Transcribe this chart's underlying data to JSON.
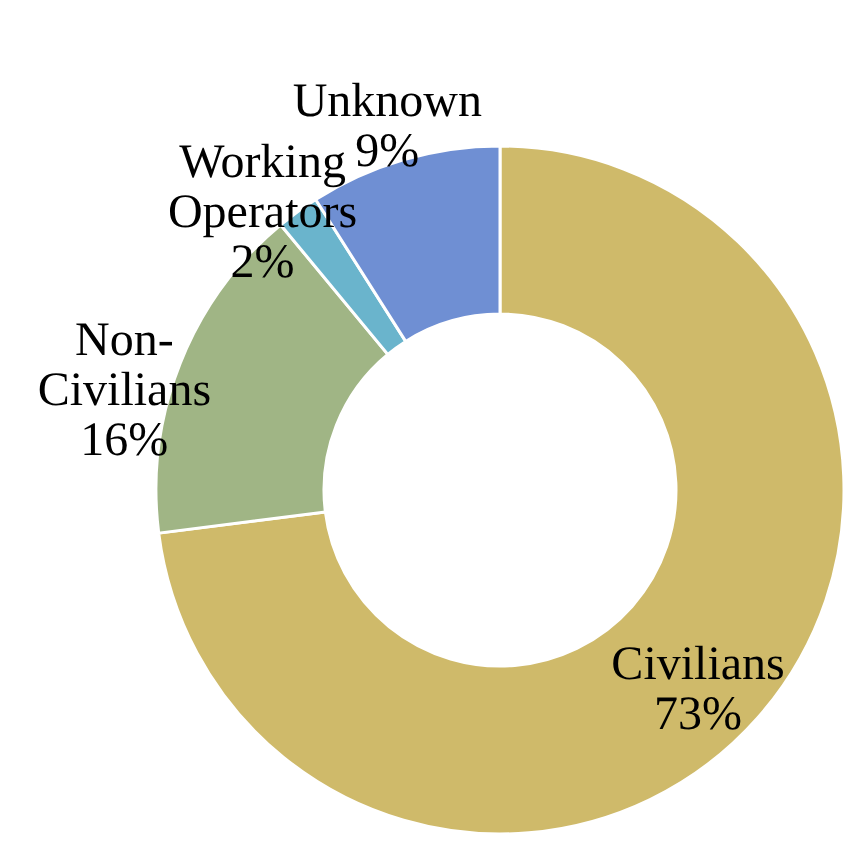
{
  "chart_data": {
    "type": "donut",
    "categories": [
      "Civilians",
      "Non-Civilians",
      "Working Operators",
      "Unknown"
    ],
    "values": [
      73,
      16,
      2,
      9
    ],
    "colors": [
      "#cfba6a",
      "#a0b585",
      "#6ab4cc",
      "#6f8fd3"
    ],
    "value_labels": [
      "73%",
      "16%",
      "2%",
      "9%"
    ]
  }
}
